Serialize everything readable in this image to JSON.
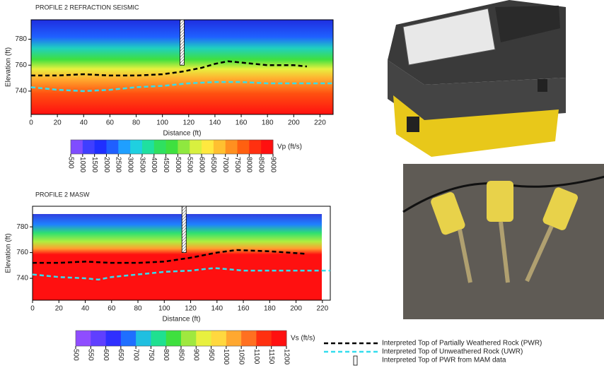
{
  "chart_data": [
    {
      "type": "contour",
      "title": "PROFILE 2 REFRACTION SEISMIC",
      "x_label": "Distance (ft)",
      "y_label": "Elevation (ft)",
      "xlim": [
        0,
        230
      ],
      "xticks": [
        0,
        20,
        40,
        60,
        80,
        100,
        120,
        140,
        160,
        180,
        200,
        220
      ],
      "ylim": [
        722,
        795
      ],
      "yticks": [
        740,
        760,
        780
      ],
      "borehole": {
        "x": 115,
        "bottom": 760
      },
      "series": [
        {
          "color": "#000000",
          "x": [
            0,
            20,
            40,
            60,
            80,
            100,
            115,
            130,
            140,
            150,
            160,
            180,
            200,
            210
          ],
          "values": [
            752,
            752,
            753,
            752,
            752,
            753,
            755,
            758,
            761,
            763,
            762,
            760,
            760,
            759
          ]
        },
        {
          "color": "#33ddee",
          "x": [
            0,
            20,
            40,
            60,
            80,
            100,
            120,
            140,
            160,
            180,
            200,
            230
          ],
          "values": [
            743,
            741,
            740,
            741,
            743,
            744,
            746,
            747,
            747,
            746,
            746,
            746
          ]
        }
      ],
      "colorbar": {
        "label": "Vp (ft/s)",
        "ticks": [
          500,
          1000,
          1500,
          2000,
          2500,
          3000,
          3500,
          4000,
          4500,
          5000,
          5500,
          6000,
          6500,
          7000,
          7500,
          8000,
          8500,
          9000
        ],
        "colors": [
          "#7f4dff",
          "#3f3fff",
          "#1f2fff",
          "#1f5fff",
          "#1f9fff",
          "#1fd0e0",
          "#1fe0a0",
          "#2fe060",
          "#3fe03f",
          "#8fe83f",
          "#d8f03f",
          "#ffe83f",
          "#ffc030",
          "#ff9020",
          "#ff6010",
          "#ff3010",
          "#ff1010"
        ]
      }
    },
    {
      "type": "contour",
      "title": "PROFILE 2 MASW",
      "x_label": "Distance (ft)",
      "y_label": "Elevation (ft)",
      "xlim": [
        0,
        226
      ],
      "xticks": [
        0,
        20,
        40,
        60,
        80,
        100,
        120,
        140,
        160,
        180,
        200,
        220
      ],
      "ylim": [
        723,
        796
      ],
      "yticks": [
        740,
        760,
        780
      ],
      "borehole": {
        "x": 115,
        "bottom": 760
      },
      "series": [
        {
          "color": "#000000",
          "x": [
            0,
            20,
            40,
            60,
            80,
            100,
            120,
            140,
            155,
            180,
            208
          ],
          "values": [
            752,
            752,
            753,
            752,
            752,
            753,
            756,
            760,
            762,
            761,
            759
          ]
        },
        {
          "color": "#33ddee",
          "x": [
            0,
            20,
            40,
            50,
            60,
            80,
            100,
            120,
            138,
            160,
            180,
            200,
            226
          ],
          "values": [
            743,
            741,
            740,
            739,
            741,
            743,
            745,
            746,
            748,
            746,
            746,
            746,
            746
          ]
        }
      ],
      "colorbar": {
        "label": "Vs (ft/s)",
        "ticks": [
          500,
          550,
          600,
          650,
          700,
          750,
          800,
          850,
          900,
          950,
          1000,
          1050,
          1100,
          1150,
          1200
        ],
        "colors": [
          "#8f4dff",
          "#5f3fff",
          "#2f2fff",
          "#1f6fff",
          "#1fbfe0",
          "#1fe090",
          "#3fe03f",
          "#9fe83f",
          "#e8f03f",
          "#ffd83f",
          "#ffa830",
          "#ff7020",
          "#ff3010",
          "#ff1010"
        ]
      }
    }
  ],
  "legend": [
    {
      "label": "Interpreted Top of Partially Weathered Rock (PWR)",
      "style": "dash",
      "color": "#000000"
    },
    {
      "label": "Interpreted Top of Unweathered Rock (UWR)",
      "style": "dash",
      "color": "#33ddee"
    },
    {
      "label": "Interpreted Top of PWR from MAM data",
      "style": "borehole",
      "color": "#000000"
    }
  ]
}
